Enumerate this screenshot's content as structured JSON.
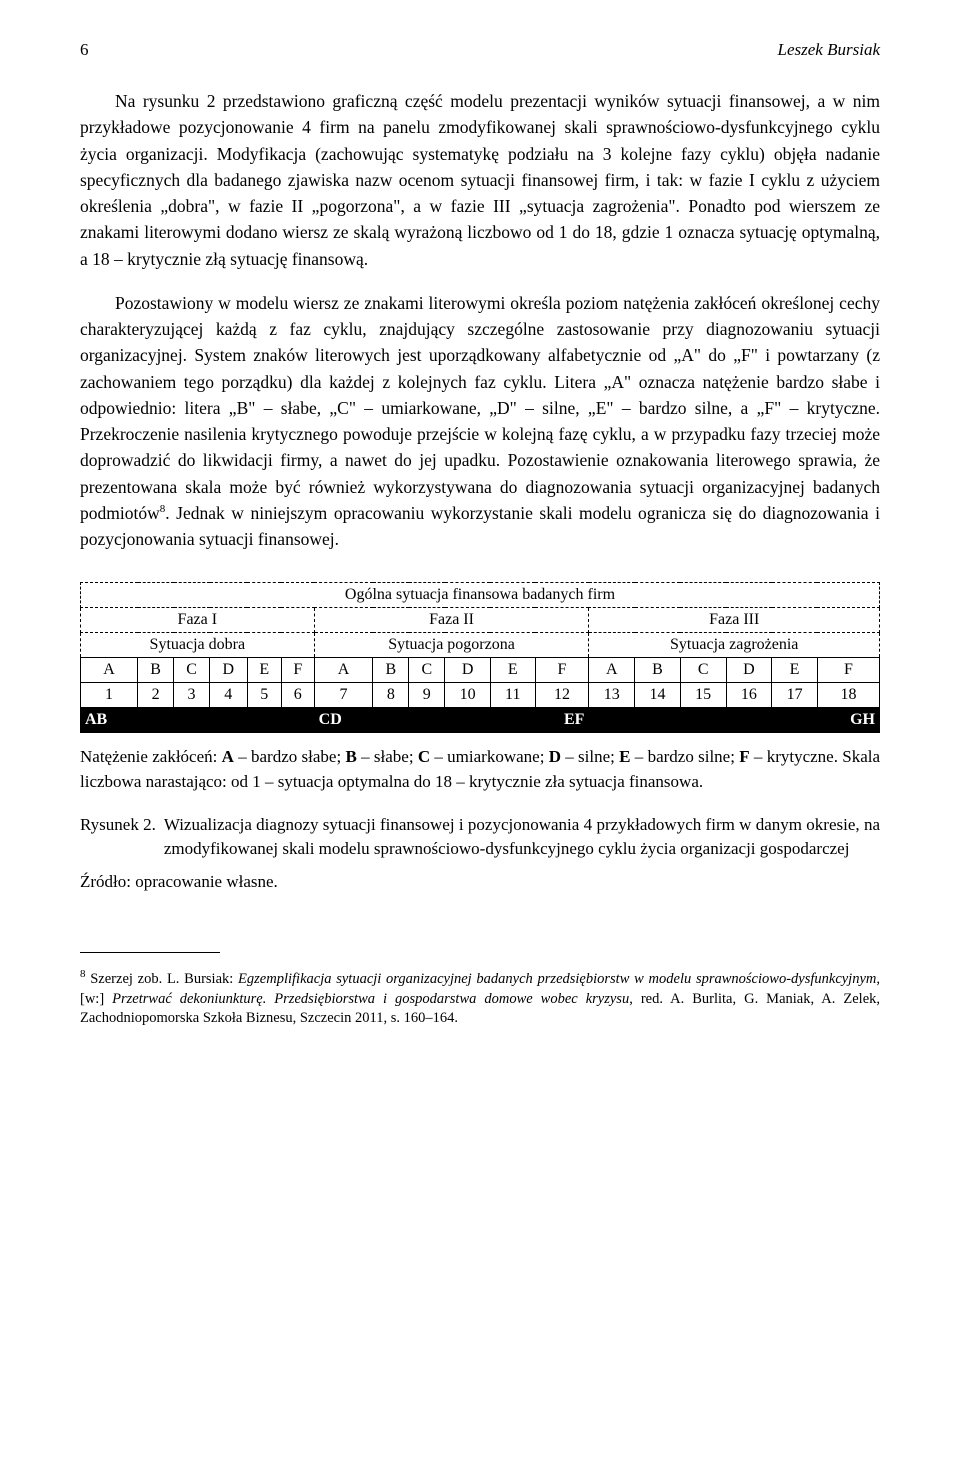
{
  "header": {
    "page_number": "6",
    "author": "Leszek Bursiak"
  },
  "paragraphs": {
    "p1": "Na rysunku 2 przedstawiono graficzną część modelu prezentacji wyników sytuacji finansowej, a w nim przykładowe pozycjonowanie 4 firm na panelu zmodyfikowanej skali sprawnościowo-dysfunkcyjnego cyklu życia organizacji. Modyfikacja (zachowując systematykę podziału na 3 kolejne fazy cyklu) objęła nadanie specyficznych dla badanego zjawiska nazw ocenom sytuacji finansowej firm, i tak: w fazie I cyklu z użyciem określenia „dobra\", w fazie II „pogorzona\", a w fazie III „sytuacja zagrożenia\". Ponadto pod wierszem ze znakami literowymi dodano wiersz ze skalą wyrażoną liczbowo od 1 do 18, gdzie 1 oznacza sytuację optymalną, a 18 – krytycznie złą sytuację finansową.",
    "p2_a": "Pozostawiony w modelu wiersz ze znakami literowymi określa poziom natężenia zakłóceń określonej cechy charakteryzującej każdą z faz cyklu, znajdujący szczególne zastosowanie przy diagnozowaniu sytuacji organizacyjnej. System znaków literowych jest uporządkowany alfabetycznie od „A\" do „F\" i powtarzany (z zachowaniem tego porządku) dla każdej z kolejnych faz cyklu. Litera „A\" oznacza natężenie bardzo słabe i odpowiednio: litera „B\" – słabe, „C\" – umiarkowane, „D\" – silne, „E\" – bardzo silne, a „F\" – krytyczne. Przekroczenie nasilenia krytycznego powoduje przejście w kolejną fazę cyklu, a w przypadku fazy trzeciej może doprowadzić do likwidacji firmy, a nawet do jej upadku. Pozostawienie oznakowania literowego sprawia, że prezentowana skala może być również wykorzystywana do diagnozowania sytuacji organizacyjnej badanych podmiotów",
    "p2_sup": "8",
    "p2_b": ". Jednak w niniejszym opracowaniu wykorzystanie skali modelu ogranicza się do diagnozowania i pozycjonowania sytuacji finansowej."
  },
  "table": {
    "title": "Ogólna sytuacja finansowa badanych firm",
    "phases": [
      "Faza I",
      "Faza II",
      "Faza III"
    ],
    "situations": [
      "Sytuacja dobra",
      "Sytuacja pogorzona",
      "Sytuacja zagrożenia"
    ],
    "letters": [
      "A",
      "B",
      "C",
      "D",
      "E",
      "F",
      "A",
      "B",
      "C",
      "D",
      "E",
      "F",
      "A",
      "B",
      "C",
      "D",
      "E",
      "F"
    ],
    "numbers": [
      "1",
      "2",
      "3",
      "4",
      "5",
      "6",
      "7",
      "8",
      "9",
      "10",
      "11",
      "12",
      "13",
      "14",
      "15",
      "16",
      "17",
      "18"
    ],
    "markers": {
      "ab": "AB",
      "cd": "CD",
      "ef": "EF",
      "gh": "GH"
    },
    "legend_a": "Natężenie zakłóceń: ",
    "legend_b": " – bardzo słabe; ",
    "legend_c": " – słabe; ",
    "legend_d": " – umiarkowane; ",
    "legend_e": " – silne; ",
    "legend_f": " – bardzo silne; ",
    "legend_g": " – krytyczne. Skala liczbowa narastająco: od 1 – sytuacja optymalna do 18 – krytycznie zła sytuacja finansowa.",
    "bold": {
      "A": "A",
      "B": "B",
      "C": "C",
      "D": "D",
      "E": "E",
      "F": "F"
    }
  },
  "figure": {
    "label": "Rysunek 2.",
    "caption": "Wizualizacja diagnozy sytuacji finansowej i pozycjonowania 4 przykładowych firm w danym okresie, na zmodyfikowanej skali modelu sprawnościowo-dysfunkcyjnego cyklu życia organizacji gospodarczej"
  },
  "source": {
    "label": "Źródło:",
    "text": "opracowanie własne."
  },
  "footnote": {
    "num": "8",
    "a": " Szerzej zob. L. Bursiak: ",
    "i1": "Egzemplifikacja sytuacji organizacyjnej badanych przedsiębiorstw w modelu sprawnościowo-dysfunkcyjnym",
    "b": ", [w:] ",
    "i2": "Przetrwać dekoniunkturę. Przedsiębiorstwa i gospodarstwa domowe wobec kryzysu",
    "c": ", red. A. Burlita, G. Maniak, A. Zelek, Zachodniopomorska Szkoła Biznesu, Szczecin 2011, s. 160–164."
  }
}
